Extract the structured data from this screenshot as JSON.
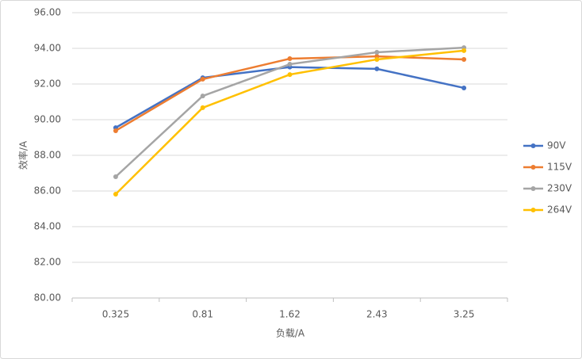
{
  "chart_data": {
    "type": "line",
    "x_label": "负载/A",
    "y_label": "效率/A",
    "categories": [
      "0.325",
      "0.81",
      "1.62",
      "2.43",
      "3.25"
    ],
    "series": [
      {
        "name": "90V",
        "color": "#4472c4",
        "values": [
          89.55,
          92.35,
          92.95,
          92.85,
          91.78
        ]
      },
      {
        "name": "115V",
        "color": "#ed7d31",
        "values": [
          89.38,
          92.27,
          93.42,
          93.55,
          93.38
        ]
      },
      {
        "name": "230V",
        "color": "#a5a5a5",
        "values": [
          86.8,
          91.33,
          93.11,
          93.78,
          94.04
        ]
      },
      {
        "name": "264V",
        "color": "#ffc000",
        "values": [
          85.82,
          90.67,
          92.53,
          93.38,
          93.87
        ]
      }
    ],
    "ylim": [
      80,
      96
    ],
    "yticks": [
      {
        "value": 80,
        "label": "80.00"
      },
      {
        "value": 82,
        "label": "82.00"
      },
      {
        "value": 84,
        "label": "84.00"
      },
      {
        "value": 86,
        "label": "86.00"
      },
      {
        "value": 88,
        "label": "88.00"
      },
      {
        "value": 90,
        "label": "90.00"
      },
      {
        "value": 92,
        "label": "92.00"
      },
      {
        "value": 94,
        "label": "94.00"
      },
      {
        "value": 96,
        "label": "96.00"
      }
    ],
    "grid": true,
    "legend": "right"
  }
}
